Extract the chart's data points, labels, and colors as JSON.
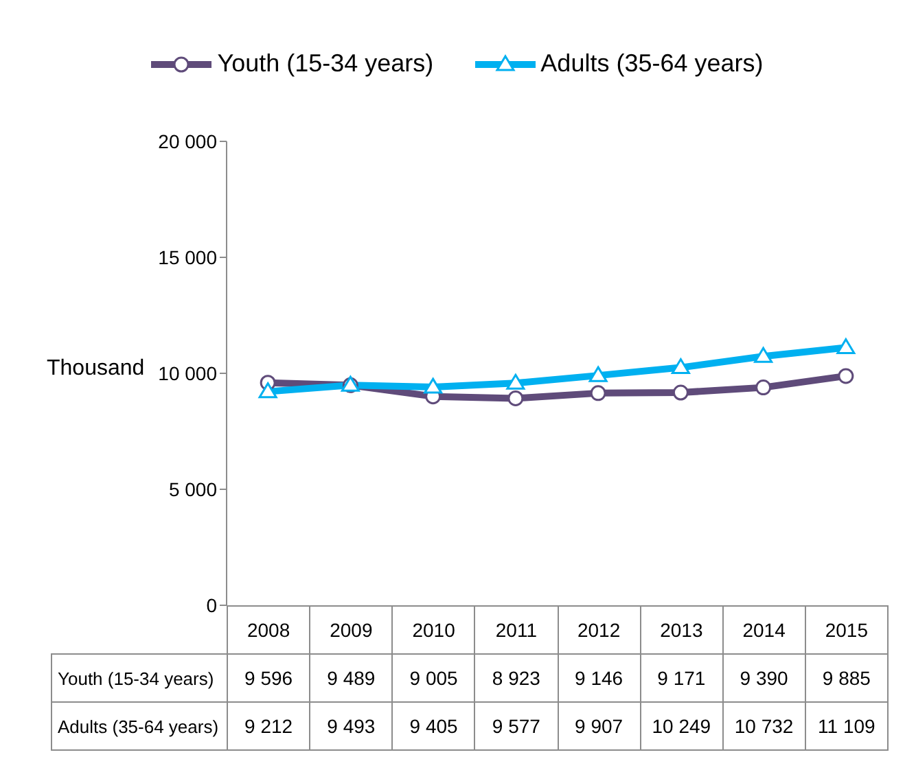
{
  "chart_data": {
    "type": "line",
    "ylabel": "Thousand",
    "categories": [
      "2008",
      "2009",
      "2010",
      "2011",
      "2012",
      "2013",
      "2014",
      "2015"
    ],
    "series": [
      {
        "name": "Youth (15-34 years)",
        "color": "#5f4b7a",
        "marker": "circle",
        "values": [
          9596,
          9489,
          9005,
          8923,
          9146,
          9171,
          9390,
          9885
        ],
        "value_labels": [
          "9 596",
          "9 489",
          "9 005",
          "8 923",
          "9 146",
          "9 171",
          "9 390",
          "9 885"
        ]
      },
      {
        "name": "Adults (35-64 years)",
        "color": "#00b0f0",
        "marker": "triangle",
        "values": [
          9212,
          9493,
          9405,
          9577,
          9907,
          10249,
          10732,
          11109
        ],
        "value_labels": [
          "9 212",
          "9 493",
          "9 405",
          "9 577",
          "9 907",
          "10 249",
          "10 732",
          "11 109"
        ]
      }
    ],
    "ylim": [
      0,
      20000
    ],
    "yticks": [
      {
        "value": 0,
        "label": "0"
      },
      {
        "value": 5000,
        "label": "5 000"
      },
      {
        "value": 10000,
        "label": "10 000"
      },
      {
        "value": 15000,
        "label": "15 000"
      },
      {
        "value": 20000,
        "label": "20 000"
      }
    ],
    "grid": false,
    "legend": "top",
    "line_style": "solid"
  }
}
